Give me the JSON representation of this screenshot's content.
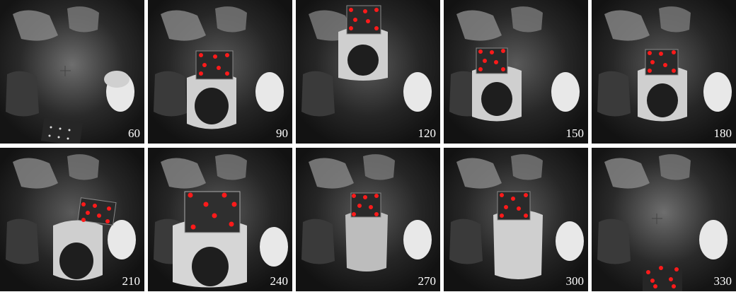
{
  "frames": [
    {
      "label": "60",
      "person": false,
      "board": "floor"
    },
    {
      "label": "90",
      "person": true,
      "board": "held-center"
    },
    {
      "label": "120",
      "person": true,
      "board": "held-top"
    },
    {
      "label": "150",
      "person": true,
      "board": "held-center"
    },
    {
      "label": "180",
      "person": true,
      "board": "held-center"
    },
    {
      "label": "210",
      "person": true,
      "board": "held-right"
    },
    {
      "label": "240",
      "person": true,
      "board": "held-large"
    },
    {
      "label": "270",
      "person": true,
      "board": "held-small"
    },
    {
      "label": "300",
      "person": true,
      "board": "held-center"
    },
    {
      "label": "330",
      "person": false,
      "board": "floor-bottom"
    }
  ],
  "colors": {
    "background": "#1a1a1a",
    "marker": "#ff1a1a",
    "label": "#ffffff",
    "separator": "#ffffff"
  }
}
